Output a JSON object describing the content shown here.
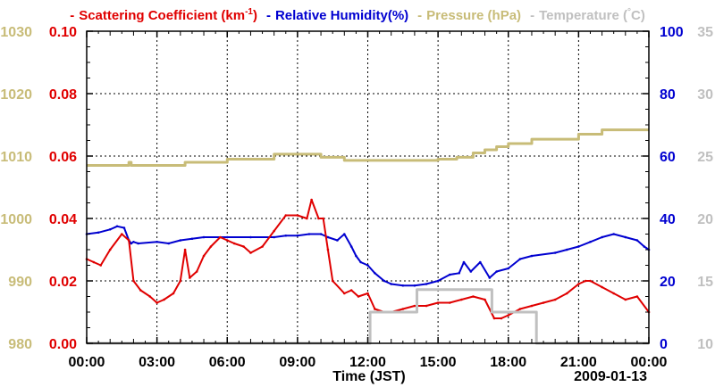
{
  "chart_data": {
    "type": "line",
    "title": "",
    "xlabel": "Time (JST)",
    "date_label": "2009-01-13",
    "x_ticks": [
      "00:00",
      "03:00",
      "06:00",
      "09:00",
      "12:00",
      "15:00",
      "18:00",
      "21:00",
      "00:00"
    ],
    "xlim_hours": [
      0,
      24
    ],
    "grid": true,
    "legend": {
      "placement": "top",
      "entries": [
        {
          "dash": "-",
          "label": "Scattering Coefficient (km",
          "sup": "-1",
          "suffix": ")",
          "color": "#e00000"
        },
        {
          "dash": "-",
          "label": "Relative Humidity(%)",
          "sup": "",
          "suffix": "",
          "color": "#0000d0"
        },
        {
          "dash": "-",
          "label": "Pressure (hPa)",
          "sup": "",
          "suffix": "",
          "color": "#c8bc78"
        },
        {
          "dash": "-",
          "label": "Temperature (",
          "sup": "°",
          "suffix": "C)",
          "color": "#c0c0c0"
        }
      ]
    },
    "axes": {
      "left_outer": {
        "name": "Pressure (hPa)",
        "ylim": [
          980,
          1030
        ],
        "ticks": [
          "980",
          "990",
          "1000",
          "1010",
          "1020",
          "1030"
        ],
        "color": "#c8bc78"
      },
      "left_inner": {
        "name": "Scattering Coefficient",
        "ylim": [
          0,
          0.1
        ],
        "ticks": [
          "0.00",
          "0.02",
          "0.04",
          "0.06",
          "0.08",
          "0.10"
        ],
        "color": "#e00000"
      },
      "right_inner": {
        "name": "Relative Humidity",
        "ylim": [
          0,
          100
        ],
        "ticks": [
          "0",
          "20",
          "40",
          "60",
          "80",
          "100"
        ],
        "color": "#0000d0"
      },
      "right_outer": {
        "name": "Temperature",
        "ylim": [
          10,
          35
        ],
        "ticks": [
          "10",
          "15",
          "20",
          "25",
          "30",
          "35"
        ],
        "color": "#c0c0c0"
      }
    },
    "series": [
      {
        "name": "Pressure (hPa)",
        "axis": "left_outer",
        "color": "#c8bc78",
        "step": true,
        "x": [
          0,
          1.7,
          1.8,
          1.9,
          4.2,
          6,
          8,
          9.6,
          10,
          11,
          14.3,
          15,
          15.8,
          16.5,
          17,
          17.5,
          18,
          19,
          21,
          22,
          24
        ],
        "y": [
          1008.5,
          1008.5,
          1009,
          1008.5,
          1009,
          1009.5,
          1010.3,
          1010.3,
          1009.8,
          1009.3,
          1009.3,
          1009.5,
          1009.8,
          1010.5,
          1011,
          1011.5,
          1012,
          1012.7,
          1013.5,
          1014.2,
          1014.2
        ]
      },
      {
        "name": "Relative Humidity(%)",
        "axis": "right_inner",
        "color": "#0000d0",
        "step": false,
        "x": [
          0,
          0.5,
          1,
          1.3,
          1.6,
          1.8,
          1.9,
          2,
          2.2,
          3,
          3.5,
          4,
          4.5,
          5,
          6,
          7,
          8,
          8.5,
          9,
          9.5,
          10,
          10.3,
          10.7,
          11,
          11.3,
          11.5,
          11.7,
          12,
          12.3,
          12.7,
          13,
          13.5,
          14,
          14.5,
          15,
          15.5,
          15.9,
          16.1,
          16.4,
          16.8,
          17.2,
          17.5,
          18,
          18.5,
          19,
          20,
          20.5,
          21,
          21.5,
          22,
          22.5,
          23,
          23.5,
          23.8,
          24
        ],
        "y": [
          35,
          35.5,
          36.5,
          37.5,
          37,
          33,
          32,
          32.5,
          32,
          32.5,
          32,
          33,
          33.5,
          34,
          34,
          34,
          34,
          34.5,
          34.5,
          35,
          35,
          34,
          33,
          35,
          31,
          28,
          26,
          25,
          22.5,
          20,
          19,
          18.5,
          18.5,
          19,
          20,
          22,
          22.5,
          26,
          23,
          26,
          21,
          23,
          24,
          27,
          28,
          29,
          30,
          31,
          32.5,
          34,
          35,
          34,
          33,
          31,
          30
        ]
      },
      {
        "name": "Scattering Coefficient",
        "axis": "left_inner",
        "color": "#e00000",
        "step": false,
        "x": [
          0,
          0.3,
          0.6,
          1,
          1.5,
          1.8,
          2,
          2.3,
          2.7,
          3,
          3.3,
          3.7,
          4,
          4.2,
          4.4,
          4.7,
          5,
          5.3,
          5.7,
          6,
          6.3,
          6.7,
          7,
          7.5,
          8,
          8.5,
          9,
          9.4,
          9.6,
          9.9,
          10.1,
          10.3,
          10.5,
          11,
          11.3,
          11.6,
          12,
          12.3,
          12.7,
          13,
          13.5,
          14,
          14.5,
          15,
          15.5,
          16,
          16.5,
          17,
          17.4,
          17.7,
          18,
          18.5,
          19,
          19.5,
          20,
          20.5,
          21,
          21.3,
          21.5,
          22,
          22.5,
          23,
          23.5,
          24
        ],
        "y": [
          0.027,
          0.026,
          0.025,
          0.03,
          0.035,
          0.033,
          0.02,
          0.017,
          0.015,
          0.013,
          0.014,
          0.016,
          0.02,
          0.03,
          0.021,
          0.023,
          0.028,
          0.031,
          0.034,
          0.033,
          0.032,
          0.031,
          0.029,
          0.031,
          0.036,
          0.041,
          0.041,
          0.04,
          0.046,
          0.04,
          0.04,
          0.03,
          0.02,
          0.016,
          0.017,
          0.015,
          0.016,
          0.011,
          0.01,
          0.01,
          0.011,
          0.012,
          0.012,
          0.013,
          0.013,
          0.014,
          0.015,
          0.014,
          0.008,
          0.008,
          0.009,
          0.011,
          0.012,
          0.013,
          0.014,
          0.016,
          0.019,
          0.02,
          0.02,
          0.018,
          0.016,
          0.014,
          0.015,
          0.01
        ]
      },
      {
        "name": "Temperature",
        "axis": "right_outer",
        "color": "#c0c0c0",
        "step": true,
        "x": [
          0,
          11.6,
          12.1,
          13,
          14.1,
          17.3,
          19.2,
          20.5,
          24
        ],
        "y": [
          10,
          10,
          12.5,
          12.5,
          14.3,
          12.5,
          10,
          10,
          10
        ]
      }
    ]
  }
}
